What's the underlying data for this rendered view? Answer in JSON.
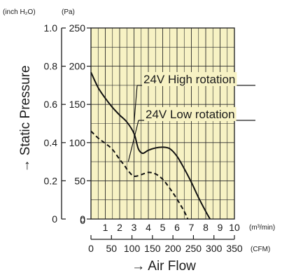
{
  "chart_data": {
    "type": "line",
    "background_color": "#f7f2c4",
    "grid": true,
    "ylabel": "→ Static Pressure",
    "xlabel": "→ Air Flow",
    "y_primary": {
      "unit": "(Pa)",
      "ticks": [
        "0",
        "50",
        "100",
        "150",
        "200",
        "250"
      ],
      "ylim": [
        0,
        250
      ]
    },
    "y_secondary": {
      "unit": "(inch H₂O)",
      "ticks": [
        "0",
        "0.2",
        "0.4",
        "0.6",
        "0.8",
        "1.0"
      ],
      "ylim": [
        0,
        1.0
      ]
    },
    "x_primary": {
      "unit": "(m³/min)",
      "ticks": [
        "0",
        "1",
        "2",
        "3",
        "4",
        "5",
        "6",
        "7",
        "8",
        "9",
        "10"
      ],
      "xlim": [
        0,
        10
      ]
    },
    "x_secondary": {
      "unit": "(CFM)",
      "ticks": [
        "0",
        "50",
        "100",
        "150",
        "200",
        "250",
        "300",
        "350"
      ]
    },
    "series": [
      {
        "name": "24V High rotation",
        "style": "solid",
        "x": [
          0,
          0.5,
          1,
          1.5,
          2,
          2.5,
          3,
          3.3,
          3.6,
          4,
          4.5,
          5,
          5.5,
          6,
          6.5,
          7,
          7.5,
          8,
          8.3
        ],
        "y": [
          192,
          172,
          158,
          146,
          136,
          127,
          112,
          92,
          86,
          90,
          93,
          94,
          92,
          82,
          66,
          48,
          28,
          10,
          0
        ]
      },
      {
        "name": "24V Low rotation",
        "style": "dashed",
        "x": [
          0,
          0.5,
          1,
          1.5,
          2,
          2.3,
          2.6,
          3,
          3.5,
          4,
          4.5,
          5,
          5.5,
          6,
          6.5,
          6.75
        ],
        "y": [
          115,
          106,
          99,
          91,
          78,
          71,
          63,
          56,
          58,
          61,
          59,
          52,
          40,
          26,
          10,
          0
        ]
      }
    ],
    "callouts": [
      {
        "text": "24V High rotation",
        "series": 0,
        "point_x": 3.0,
        "point_y": 125
      },
      {
        "text": "24V Low rotation",
        "series": 1,
        "point_x": 2.6,
        "point_y": 75
      }
    ]
  }
}
